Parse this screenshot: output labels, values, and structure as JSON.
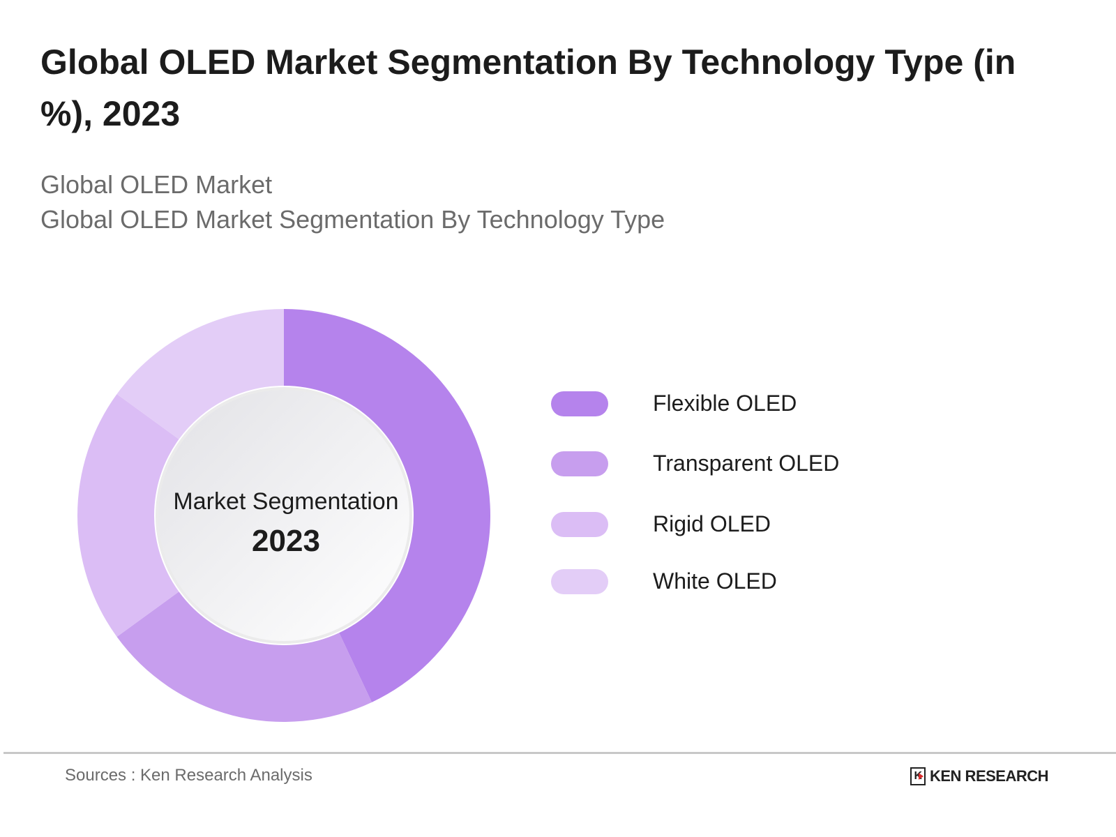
{
  "title": "Global OLED Market Segmentation By Technology Type (in %), 2023",
  "subtitle_1": "Global OLED Market",
  "subtitle_2": "Global OLED Market Segmentation By Technology Type",
  "center_label": "Market Segmentation",
  "center_year": "2023",
  "source": "Sources : Ken Research Analysis",
  "logo_text": "KEN RESEARCH",
  "chart_data": {
    "type": "pie",
    "variant": "donut",
    "categories": [
      "Flexible OLED",
      "Transparent OLED",
      "Rigid OLED",
      "White OLED"
    ],
    "values": [
      43,
      22,
      20,
      15
    ],
    "colors": [
      "#b583ec",
      "#c79eee",
      "#dbbdf5",
      "#e3cdf7"
    ],
    "legend": "right"
  }
}
